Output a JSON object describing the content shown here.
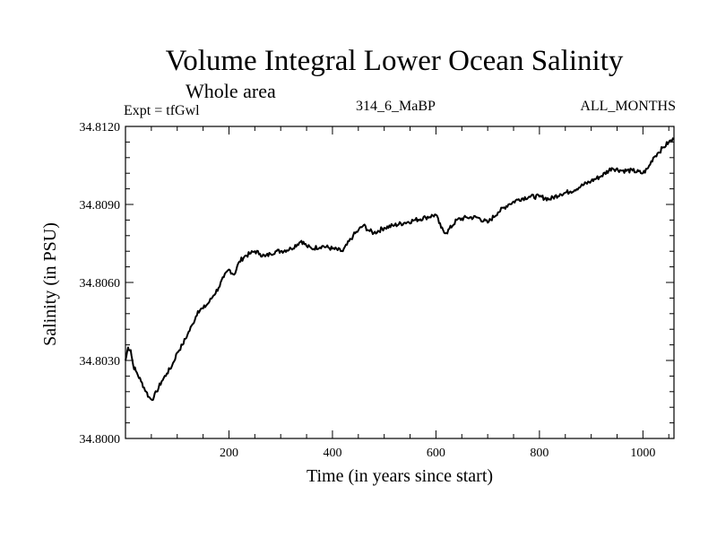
{
  "header": {
    "title": "Volume Integral Lower Ocean Salinity",
    "subtitle": "Whole area",
    "experiment": "Expt = tfGwl",
    "run_id": "314_6_MaBP",
    "period": "ALL_MONTHS"
  },
  "chart_data": {
    "type": "line",
    "title": "Volume Integral Lower Ocean Salinity",
    "xlabel": "Time (in years since start)",
    "ylabel": "Salinity (in PSU)",
    "xlim": [
      0,
      1060
    ],
    "ylim": [
      34.8,
      34.812
    ],
    "x_ticks": [
      "200",
      "400",
      "600",
      "800",
      "1000"
    ],
    "y_ticks": [
      "34.8000",
      "34.8030",
      "34.8060",
      "34.8090",
      "34.8120"
    ],
    "series": [
      {
        "name": "Salinity",
        "x": [
          0,
          5,
          10,
          15,
          20,
          30,
          40,
          45,
          50,
          55,
          60,
          70,
          80,
          90,
          100,
          110,
          120,
          130,
          140,
          150,
          160,
          170,
          180,
          190,
          200,
          210,
          220,
          230,
          240,
          250,
          260,
          270,
          280,
          290,
          300,
          320,
          340,
          350,
          360,
          380,
          400,
          420,
          440,
          450,
          460,
          470,
          480,
          500,
          520,
          540,
          560,
          580,
          600,
          610,
          620,
          640,
          660,
          680,
          700,
          720,
          740,
          760,
          780,
          800,
          820,
          840,
          860,
          880,
          900,
          920,
          940,
          960,
          980,
          1000,
          1010,
          1020,
          1030,
          1040,
          1050,
          1060
        ],
        "y": [
          34.803,
          34.8035,
          34.8034,
          34.8028,
          34.8026,
          34.8022,
          34.8018,
          34.8016,
          34.8015,
          34.8016,
          34.8018,
          34.8022,
          34.8025,
          34.8028,
          34.8033,
          34.8036,
          34.804,
          34.8044,
          34.8049,
          34.805,
          34.8052,
          34.8055,
          34.8058,
          34.8062,
          34.8065,
          34.8063,
          34.8068,
          34.807,
          34.8071,
          34.8072,
          34.8071,
          34.807,
          34.8071,
          34.8072,
          34.8072,
          34.8073,
          34.8076,
          34.8074,
          34.8073,
          34.8074,
          34.8073,
          34.8072,
          34.8078,
          34.808,
          34.8082,
          34.808,
          34.8079,
          34.8081,
          34.8082,
          34.8083,
          34.8084,
          34.8085,
          34.8086,
          34.8081,
          34.8079,
          34.8084,
          34.8085,
          34.8085,
          34.8083,
          34.8087,
          34.809,
          34.8092,
          34.8093,
          34.8093,
          34.8092,
          34.8094,
          34.8095,
          34.8097,
          34.8099,
          34.8101,
          34.8104,
          34.8103,
          34.8103,
          34.8102,
          34.8104,
          34.8108,
          34.811,
          34.8112,
          34.8114,
          34.8115
        ]
      }
    ]
  }
}
